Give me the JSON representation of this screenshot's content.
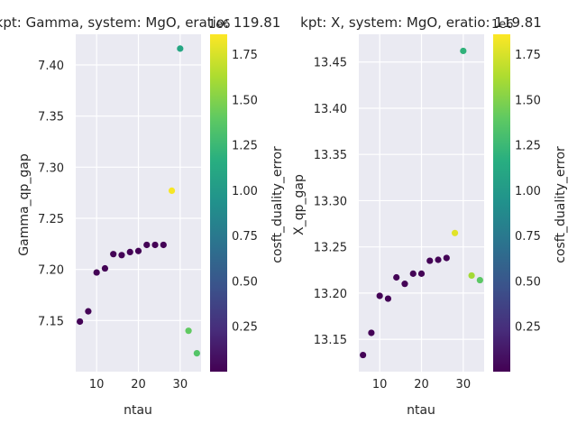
{
  "chart_data": [
    {
      "type": "scatter",
      "title": "kpt: Gamma, system: MgO, eratio: 119.81",
      "xlabel": "ntau",
      "ylabel": "Gamma_qp_gap",
      "colorbar_label": "cosft_duality_error",
      "colorbar_exponent": "1e6",
      "colormap": "viridis",
      "xlim": [
        5,
        35
      ],
      "ylim": [
        7.1,
        7.43
      ],
      "xticks": [
        10,
        20,
        30
      ],
      "yticks": [
        7.15,
        7.2,
        7.25,
        7.3,
        7.35,
        7.4
      ],
      "ytick_labels": [
        "7.15",
        "7.20",
        "7.25",
        "7.30",
        "7.35",
        "7.40"
      ],
      "cbar_lim": [
        0.0,
        1.86
      ],
      "cbar_ticks": [
        0.25,
        0.5,
        0.75,
        1.0,
        1.25,
        1.5,
        1.75
      ],
      "cbar_tick_labels": [
        "0.25",
        "0.50",
        "0.75",
        "1.00",
        "1.25",
        "1.50",
        "1.75"
      ],
      "points": [
        {
          "x": 6,
          "y": 7.149,
          "c": 0.01
        },
        {
          "x": 8,
          "y": 7.159,
          "c": 0.01
        },
        {
          "x": 10,
          "y": 7.197,
          "c": 0.01
        },
        {
          "x": 12,
          "y": 7.201,
          "c": 0.01
        },
        {
          "x": 14,
          "y": 7.215,
          "c": 0.01
        },
        {
          "x": 16,
          "y": 7.214,
          "c": 0.01
        },
        {
          "x": 18,
          "y": 7.217,
          "c": 0.01
        },
        {
          "x": 20,
          "y": 7.218,
          "c": 0.01
        },
        {
          "x": 22,
          "y": 7.224,
          "c": 0.01
        },
        {
          "x": 24,
          "y": 7.224,
          "c": 0.01
        },
        {
          "x": 26,
          "y": 7.224,
          "c": 0.01
        },
        {
          "x": 28,
          "y": 7.277,
          "c": 1.84
        },
        {
          "x": 30,
          "y": 7.416,
          "c": 1.1
        },
        {
          "x": 32,
          "y": 7.14,
          "c": 1.4
        },
        {
          "x": 34,
          "y": 7.118,
          "c": 1.35
        }
      ]
    },
    {
      "type": "scatter",
      "title": "kpt: X, system: MgO, eratio: 119.81",
      "xlabel": "ntau",
      "ylabel": "X_qp_gap",
      "colorbar_label": "cosft_duality_error",
      "colorbar_exponent": "1e6",
      "colormap": "viridis",
      "xlim": [
        5,
        35
      ],
      "ylim": [
        13.115,
        13.48
      ],
      "xticks": [
        10,
        20,
        30
      ],
      "yticks": [
        13.15,
        13.2,
        13.25,
        13.3,
        13.35,
        13.4,
        13.45
      ],
      "ytick_labels": [
        "13.15",
        "13.20",
        "13.25",
        "13.30",
        "13.35",
        "13.40",
        "13.45"
      ],
      "cbar_lim": [
        0.0,
        1.86
      ],
      "cbar_ticks": [
        0.25,
        0.5,
        0.75,
        1.0,
        1.25,
        1.5,
        1.75
      ],
      "cbar_tick_labels": [
        "0.25",
        "0.50",
        "0.75",
        "1.00",
        "1.25",
        "1.50",
        "1.75"
      ],
      "points": [
        {
          "x": 6,
          "y": 13.133,
          "c": 0.01
        },
        {
          "x": 8,
          "y": 13.157,
          "c": 0.01
        },
        {
          "x": 10,
          "y": 13.197,
          "c": 0.01
        },
        {
          "x": 12,
          "y": 13.194,
          "c": 0.01
        },
        {
          "x": 14,
          "y": 13.217,
          "c": 0.01
        },
        {
          "x": 16,
          "y": 13.21,
          "c": 0.01
        },
        {
          "x": 18,
          "y": 13.221,
          "c": 0.01
        },
        {
          "x": 20,
          "y": 13.221,
          "c": 0.01
        },
        {
          "x": 22,
          "y": 13.235,
          "c": 0.01
        },
        {
          "x": 24,
          "y": 13.236,
          "c": 0.01
        },
        {
          "x": 26,
          "y": 13.238,
          "c": 0.01
        },
        {
          "x": 28,
          "y": 13.265,
          "c": 1.78
        },
        {
          "x": 30,
          "y": 13.462,
          "c": 1.2
        },
        {
          "x": 32,
          "y": 13.219,
          "c": 1.6
        },
        {
          "x": 34,
          "y": 13.214,
          "c": 1.38
        }
      ]
    }
  ]
}
